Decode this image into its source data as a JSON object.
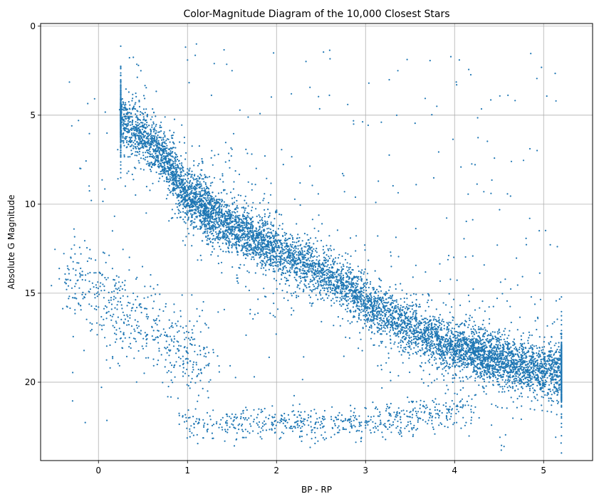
{
  "chart_data": {
    "type": "scatter",
    "title": "Color-Magnitude Diagram of the 10,000 Closest Stars",
    "xlabel": "BP - RP",
    "ylabel": "Absolute G Magnitude",
    "xlim": [
      -0.65,
      5.55
    ],
    "ylim": [
      24.4,
      -0.15
    ],
    "y_inverted": true,
    "grid": true,
    "x_ticks": [
      0,
      1,
      2,
      3,
      4,
      5
    ],
    "y_ticks": [
      0,
      5,
      10,
      15,
      20
    ],
    "point_color": "#1f77b4",
    "n_points": 10000,
    "components": [
      {
        "kind": "main-sequence-curve",
        "fraction": 0.86,
        "x_range": [
          0.25,
          5.2
        ],
        "curve_x": [
          0.25,
          0.7,
          1.0,
          1.5,
          2.0,
          2.5,
          2.8,
          3.0,
          3.3,
          3.6,
          4.0,
          4.5,
          5.0,
          5.2
        ],
        "curve_y": [
          5.2,
          7.0,
          9.6,
          11.3,
          12.6,
          13.8,
          14.6,
          15.5,
          16.4,
          17.2,
          18.0,
          18.8,
          19.3,
          19.5
        ],
        "y_spread": 0.7
      },
      {
        "kind": "white-dwarf-upper",
        "fraction": 0.05,
        "x_range": [
          -0.35,
          1.3
        ],
        "y_range": [
          11.5,
          20.5
        ]
      },
      {
        "kind": "white-dwarf-lower",
        "fraction": 0.06,
        "x_range": [
          0.9,
          4.2
        ],
        "y_range": [
          20.5,
          23.2
        ]
      },
      {
        "kind": "scattered",
        "fraction": 0.03,
        "x_range": [
          -0.35,
          5.2
        ],
        "y_range": [
          1.0,
          23.0
        ]
      }
    ],
    "notable_points": [
      {
        "x": 1.1,
        "y": 1.0
      },
      {
        "x": 1.0,
        "y": 1.9
      },
      {
        "x": 1.3,
        "y": 2.1
      },
      {
        "x": 1.5,
        "y": 2.5
      },
      {
        "x": -0.3,
        "y": 5.6
      },
      {
        "x": -0.2,
        "y": 8.0
      },
      {
        "x": 3.8,
        "y": 4.5
      },
      {
        "x": 2.8,
        "y": 4.4
      }
    ]
  }
}
